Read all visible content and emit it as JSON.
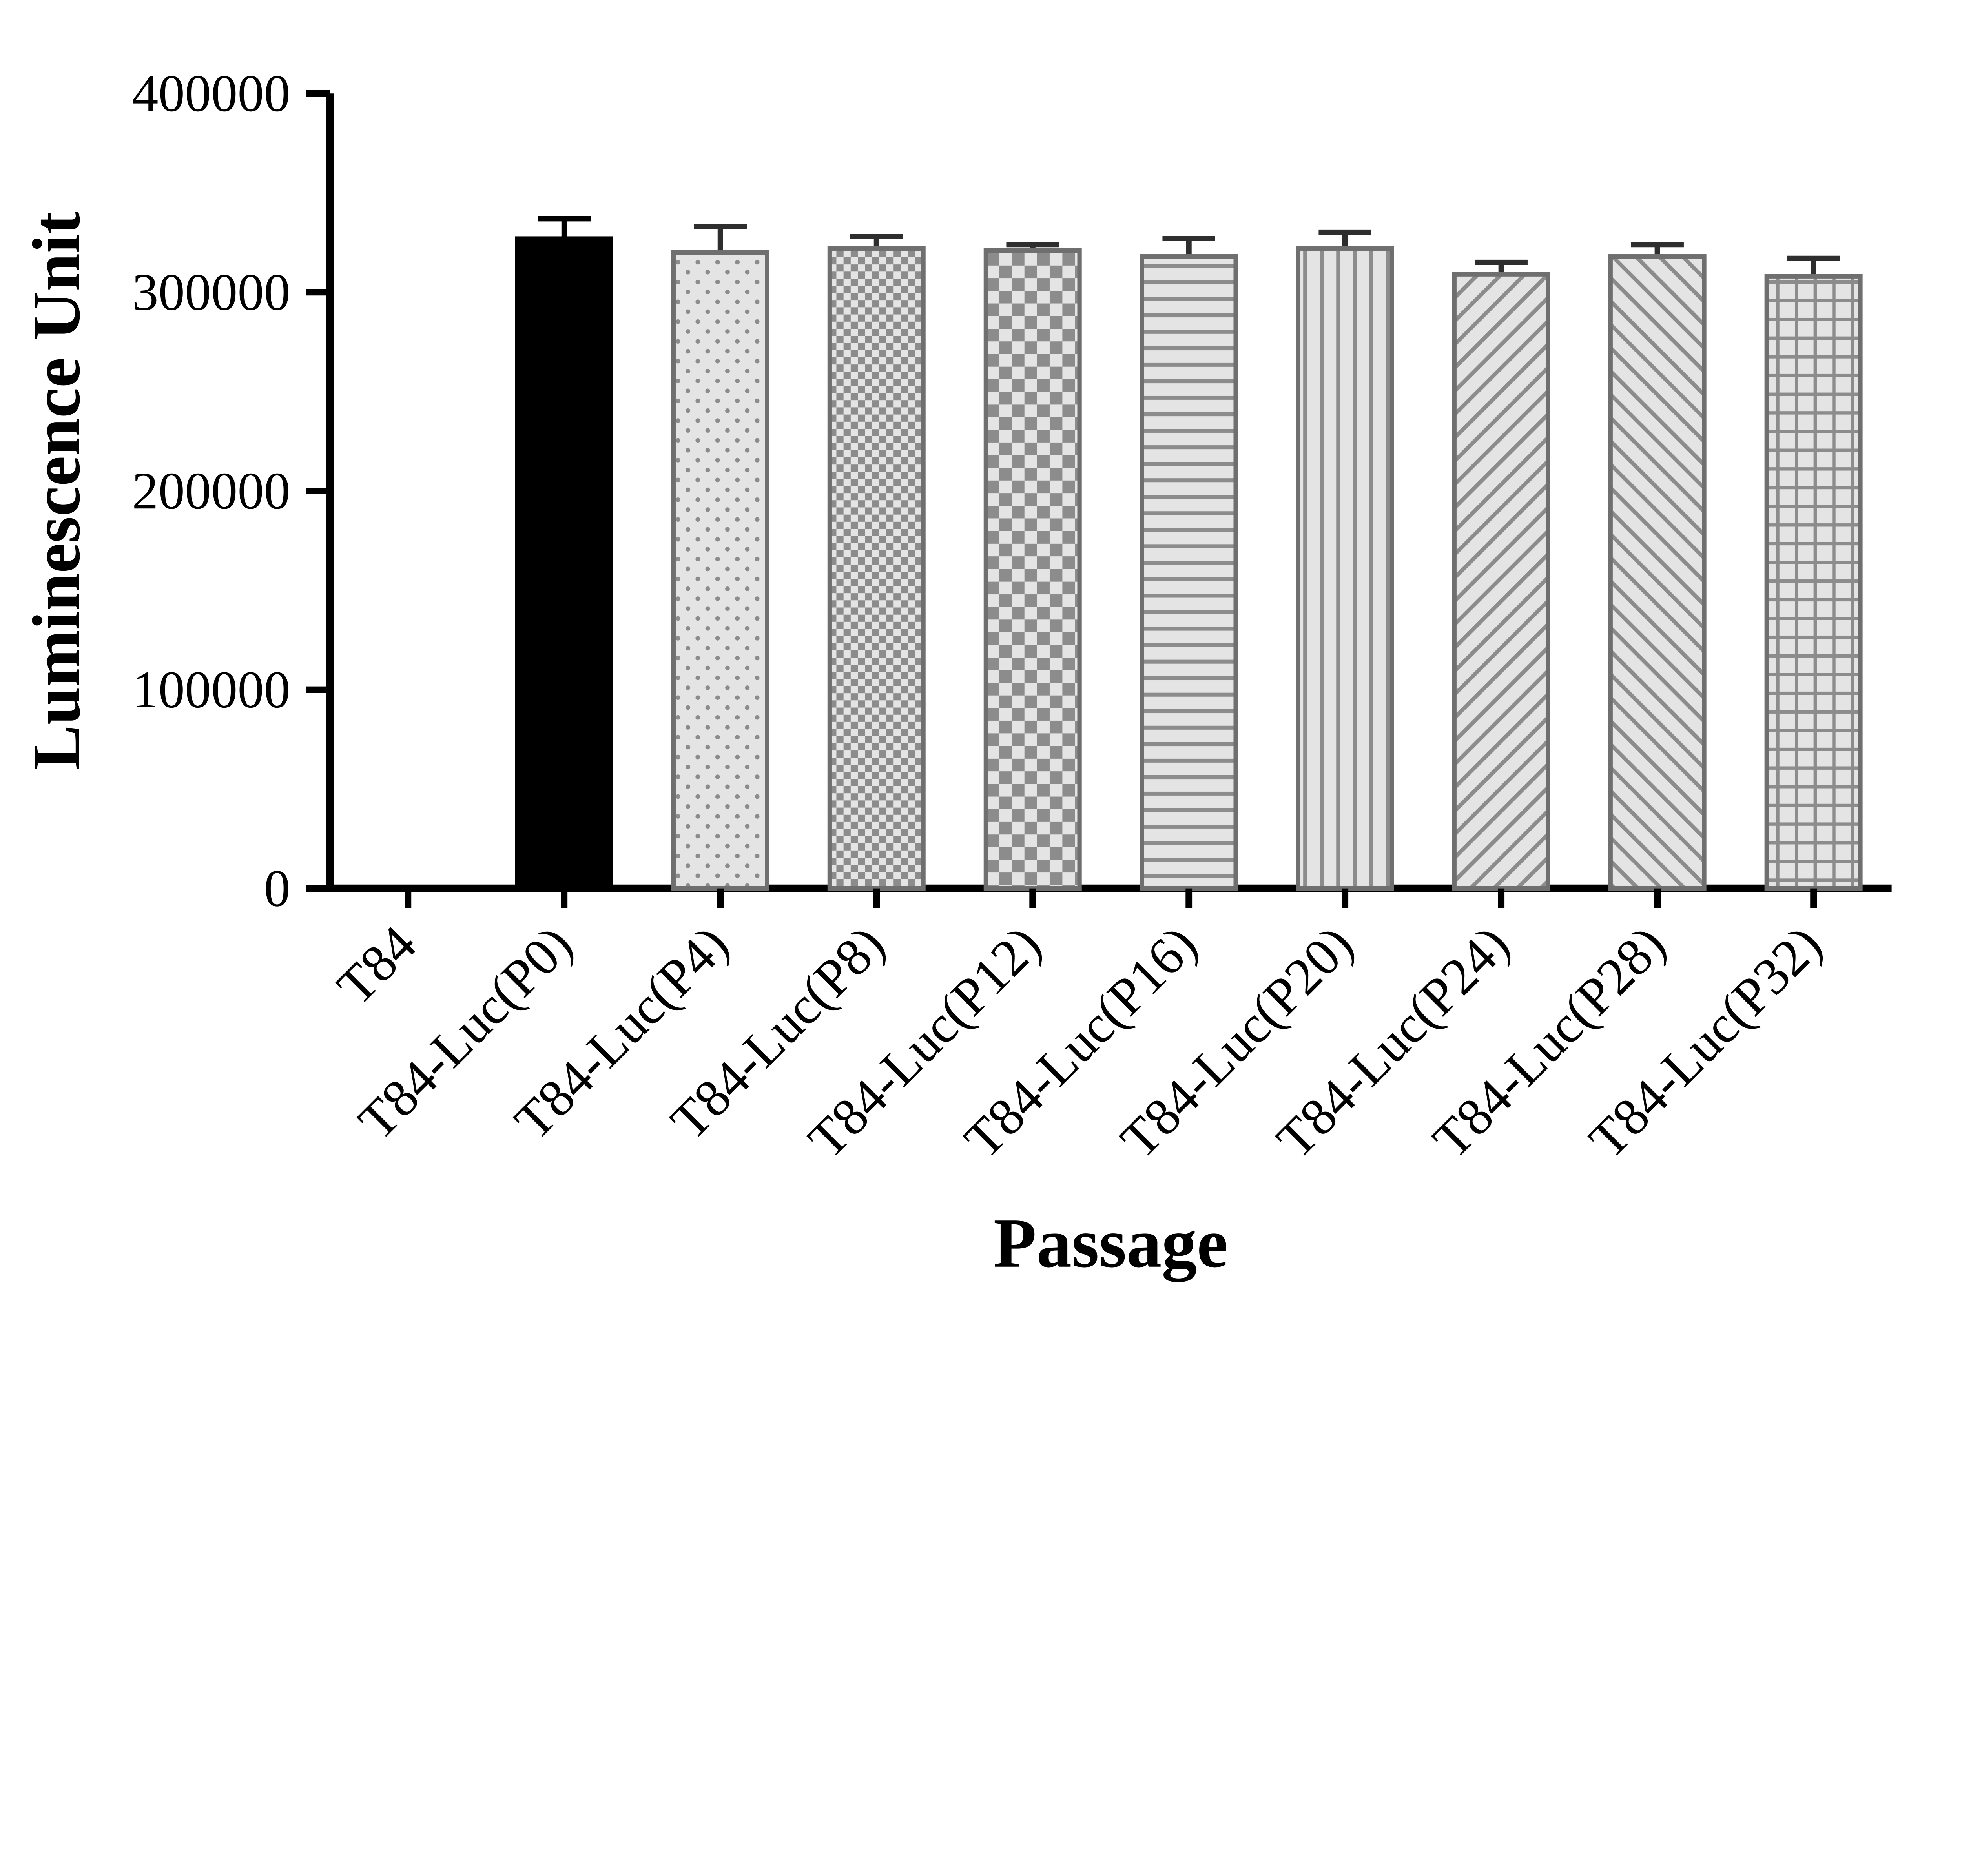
{
  "figure": {
    "name": "luminescence-by-passage-bar-chart"
  },
  "chart_data": {
    "type": "bar",
    "title": "",
    "xlabel": "Passage",
    "ylabel": "Luminescence Unit",
    "ylim": [
      0,
      400000
    ],
    "yticks": [
      0,
      100000,
      200000,
      300000,
      400000
    ],
    "grid": false,
    "legend": "none",
    "categories": [
      "T84",
      "T84-Luc(P0)",
      "T84-Luc(P4)",
      "T84-Luc(P8)",
      "T84-Luc(P12)",
      "T84-Luc(P16)",
      "T84-Luc(P20)",
      "T84-Luc(P24)",
      "T84-Luc(P28)",
      "T84-Luc(P32)"
    ],
    "series": [
      {
        "name": "Luminescence Unit",
        "values": [
          0,
          327000,
          320000,
          322000,
          321000,
          318000,
          322000,
          309000,
          318000,
          308000
        ],
        "errors_plus": [
          0,
          10000,
          13000,
          6000,
          3000,
          9000,
          8000,
          6000,
          6000,
          9000
        ]
      }
    ],
    "bar_patterns": [
      "none",
      "solid",
      "dots",
      "checker-fine",
      "checker-coarse",
      "horizontal-lines",
      "vertical-lines",
      "diagonal-right",
      "diagonal-left",
      "grid"
    ],
    "colors": {
      "solid": "#000000",
      "pattern_bg": "#e4e4e4",
      "pattern_mark": "#8c8c8c",
      "bar_stroke": "#6f6f6f",
      "axis": "#000000",
      "error_bar": "#2e2e2e"
    }
  }
}
